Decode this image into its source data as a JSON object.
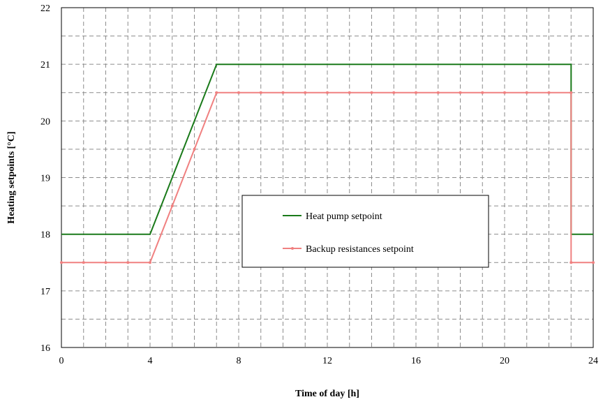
{
  "chart_data": {
    "type": "line",
    "xlabel": "Time of day [h]",
    "ylabel": "Heating setpoints [°C]",
    "xlim": [
      0,
      24
    ],
    "ylim": [
      16,
      22
    ],
    "x_ticks": [
      "0",
      "4",
      "8",
      "12",
      "16",
      "20",
      "24"
    ],
    "y_ticks": [
      "16",
      "17",
      "18",
      "19",
      "20",
      "21",
      "22"
    ],
    "grid": true,
    "legend_position": "center-right",
    "series": [
      {
        "name": "Heat pump setpoint",
        "color": "#1a7a1a",
        "markers": false,
        "x": [
          0,
          4,
          7,
          23,
          23,
          24
        ],
        "y": [
          18,
          18,
          21,
          21,
          18,
          18
        ]
      },
      {
        "name": "Backup resistances setpoint",
        "color": "#f08080",
        "markers": true,
        "x": [
          0,
          1,
          2,
          3,
          4,
          5,
          6,
          7,
          8,
          9,
          10,
          11,
          12,
          13,
          14,
          15,
          16,
          17,
          18,
          19,
          20,
          21,
          22,
          23,
          23,
          24
        ],
        "y": [
          17.5,
          17.5,
          17.5,
          17.5,
          17.5,
          18.5,
          19.5,
          20.5,
          20.5,
          20.5,
          20.5,
          20.5,
          20.5,
          20.5,
          20.5,
          20.5,
          20.5,
          20.5,
          20.5,
          20.5,
          20.5,
          20.5,
          20.5,
          20.5,
          17.5,
          17.5
        ]
      }
    ]
  }
}
